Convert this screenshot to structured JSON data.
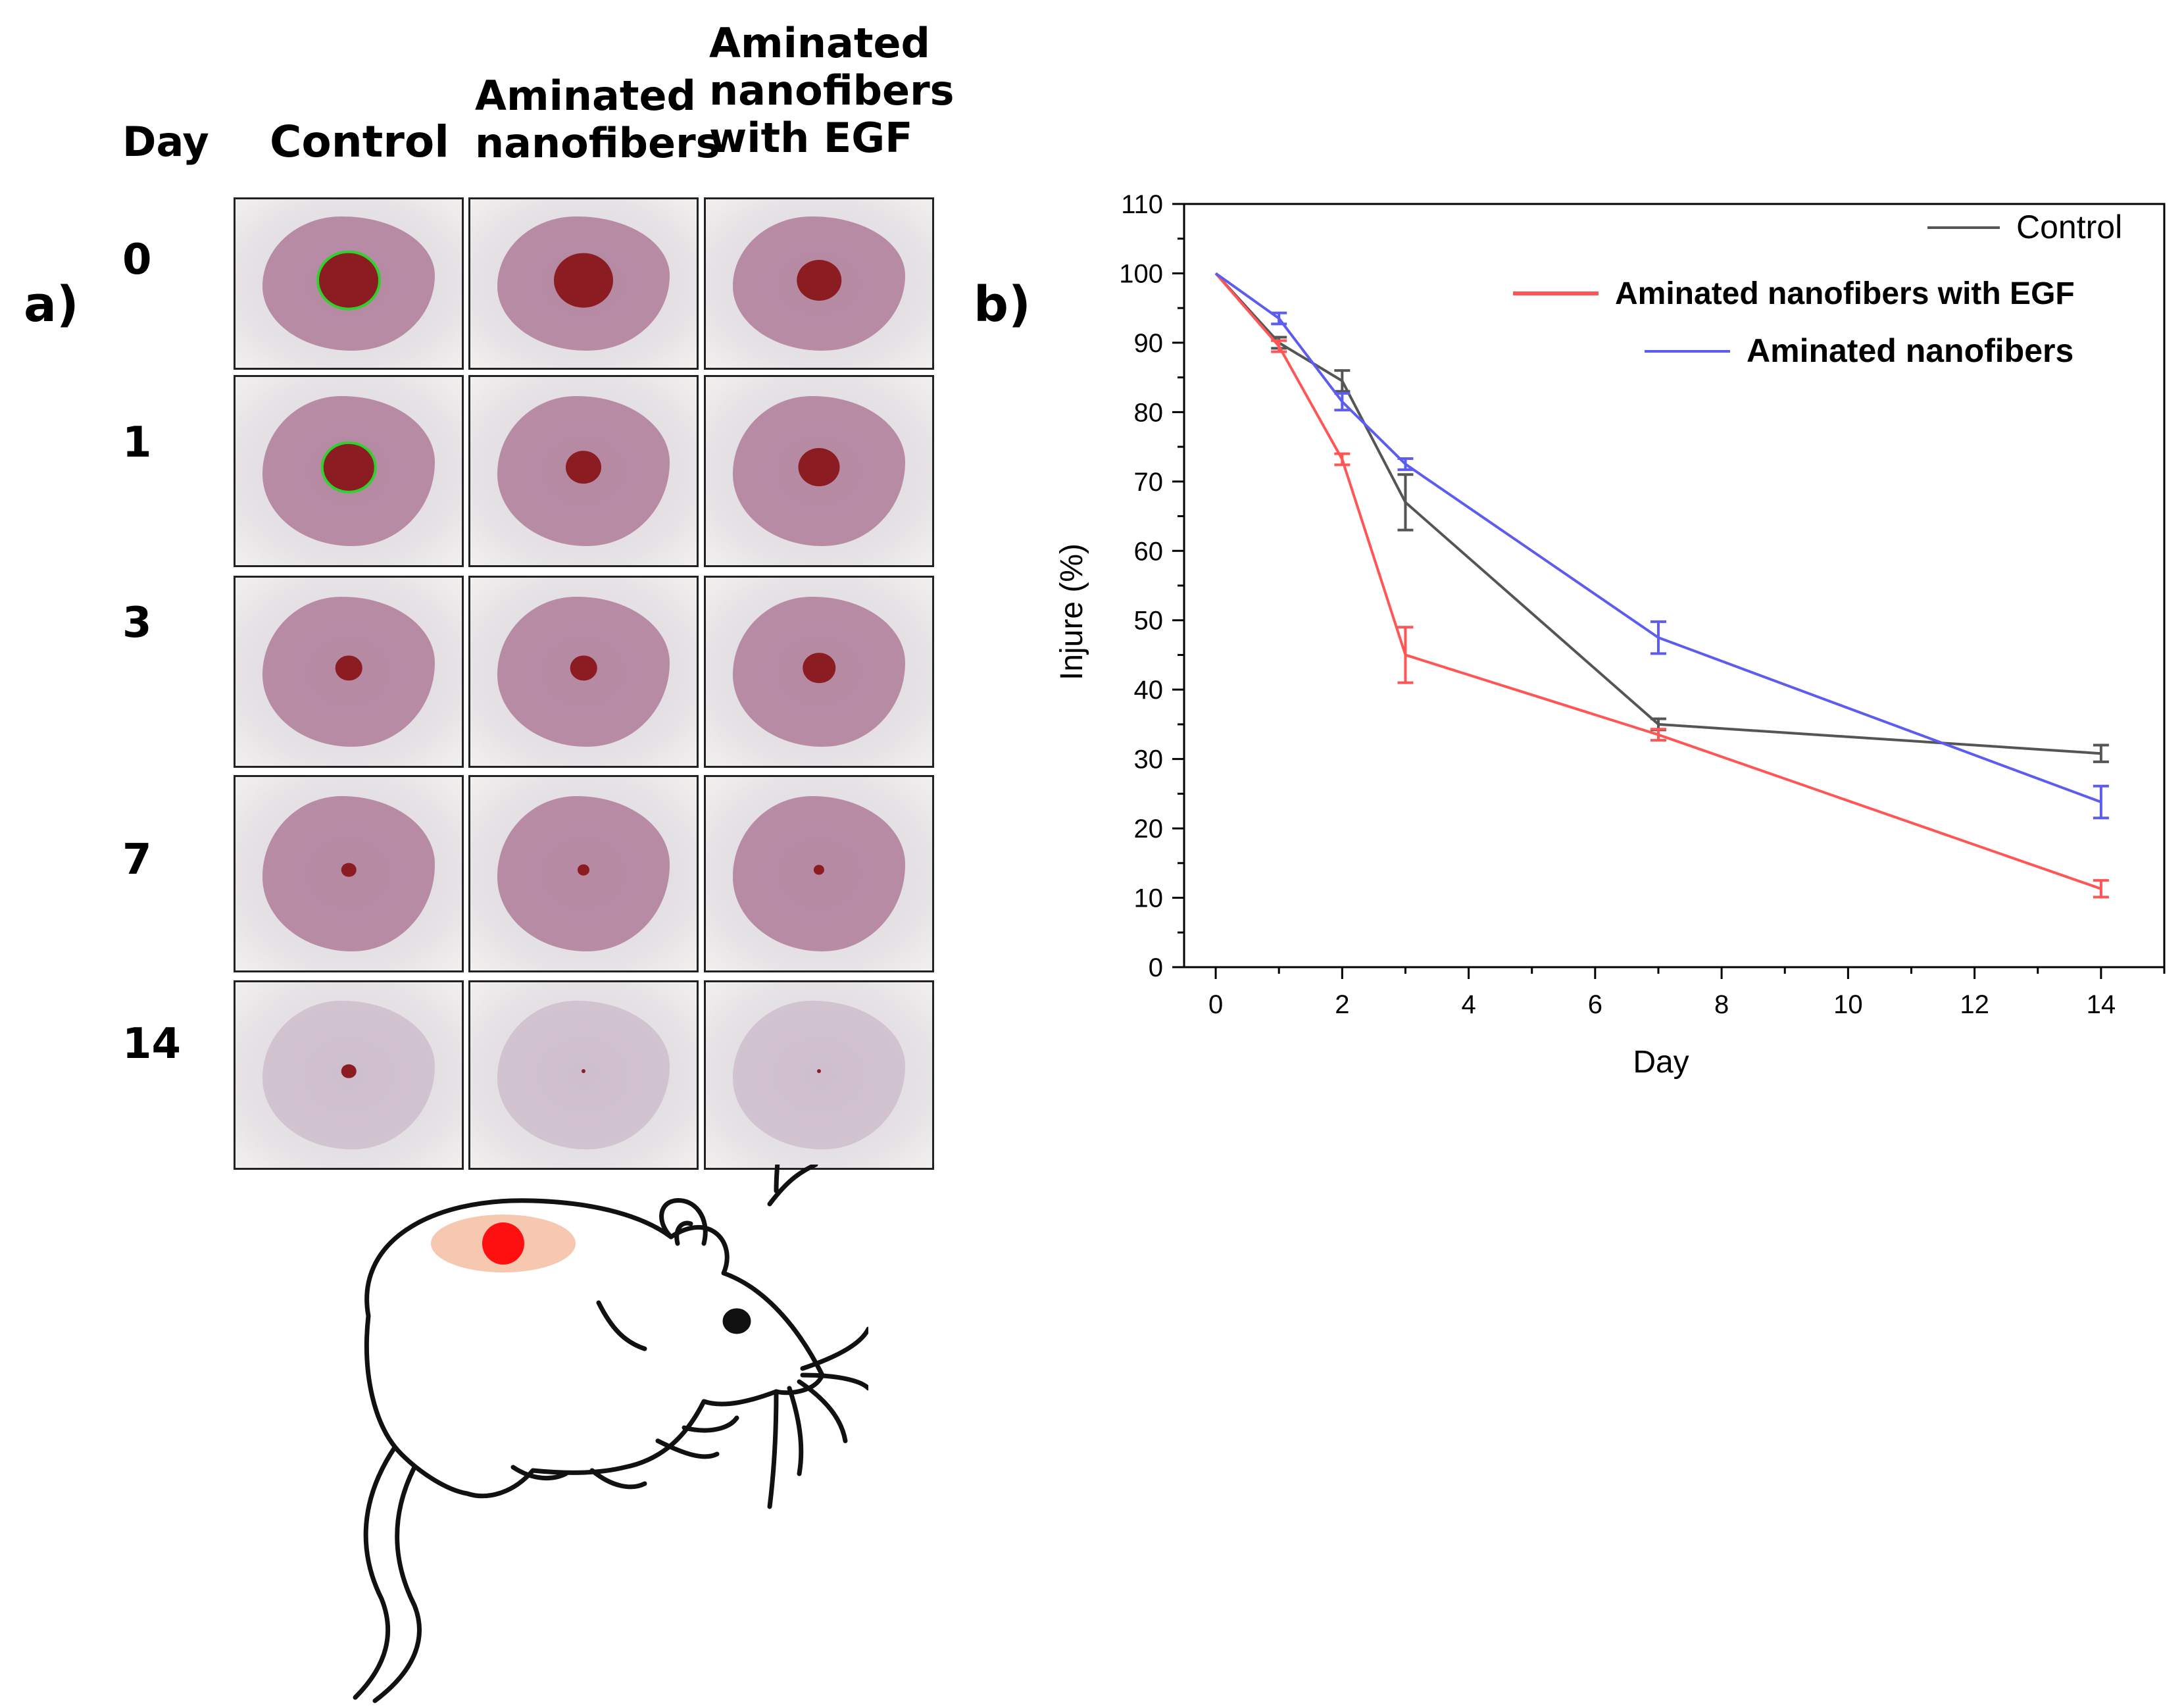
{
  "panel_a": {
    "label": "a)",
    "day_header": "Day",
    "column_headers": [
      {
        "line1": "Control",
        "line2": "",
        "line3": ""
      },
      {
        "line1": "Aminated",
        "line2": "nanofibers",
        "line3": ""
      },
      {
        "line1": "Aminated",
        "line2": "nanofibers",
        "line3": "with EGF"
      }
    ],
    "days": [
      "0",
      "1",
      "3",
      "7",
      "14"
    ],
    "wound_size": [
      [
        1.0,
        1.0,
        0.75
      ],
      [
        0.85,
        0.6,
        0.7
      ],
      [
        0.45,
        0.45,
        0.55
      ],
      [
        0.25,
        0.2,
        0.18
      ],
      [
        0.25,
        0.06,
        0.05
      ]
    ],
    "colors": {
      "fur": "#e6e3e6",
      "skin": "#b07d9a",
      "wound": "#8a1c22",
      "outline": "#2fd12f",
      "spot": "#ff1010",
      "halo": "#f6c8b0"
    }
  },
  "panel_b": {
    "label": "b)"
  },
  "chart_data": {
    "type": "line",
    "title": "",
    "xlabel": "Day",
    "ylabel": "Injure (%)",
    "xlim": [
      -0.5,
      15
    ],
    "ylim": [
      0,
      110
    ],
    "xticks": [
      0,
      2,
      4,
      6,
      8,
      10,
      12,
      14
    ],
    "yticks": [
      0,
      10,
      20,
      30,
      40,
      50,
      60,
      70,
      80,
      90,
      100,
      110
    ],
    "x": [
      0,
      1,
      2,
      3,
      7,
      14
    ],
    "legend_position": "top-right",
    "series": [
      {
        "name": "Control",
        "color": "#555555",
        "values": [
          100,
          90.0,
          84.5,
          67.0,
          35.0,
          30.8
        ],
        "errors": [
          0,
          0.8,
          1.5,
          4.0,
          0.8,
          1.2
        ]
      },
      {
        "name": "Aminated nanofibers with EGF",
        "color": "#ff5555",
        "values": [
          100,
          89.5,
          73.2,
          45.0,
          33.5,
          11.3
        ],
        "errors": [
          0,
          0.8,
          0.8,
          4.0,
          0.8,
          1.2
        ]
      },
      {
        "name": "Aminated nanofibers",
        "color": "#5c5cf0",
        "values": [
          100,
          93.5,
          81.5,
          72.5,
          47.5,
          23.8
        ],
        "errors": [
          0,
          0.8,
          1.2,
          0.8,
          2.3,
          2.3
        ]
      }
    ]
  }
}
